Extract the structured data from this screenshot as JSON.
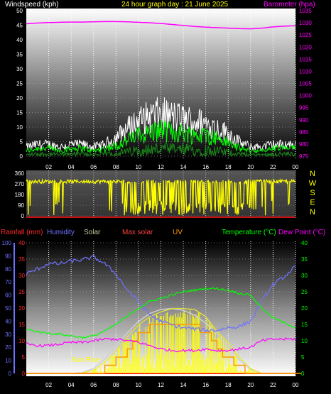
{
  "colors": {
    "white": "#ffffff",
    "yellow": "#ffff00",
    "magenta": "#ff00ff",
    "green": "#00ff00",
    "blue": "#6f72ff",
    "red": "#ff2a2a",
    "orange": "#ff7f00",
    "solar": "#c7c7a0",
    "dew": "#ff4fd8",
    "uv": "#ff9900"
  },
  "header": {
    "windspeed_label": "Windspeed (kph)",
    "title": "24 hour graph day : 21 June 2025",
    "barometer_label": "Barometer (hpa)"
  },
  "legend": {
    "rainfall": "Rainfall (mm)",
    "humidity": "Humidity",
    "solar": "Solar",
    "max_solar": "Max solar",
    "uv": "UV",
    "temperature": "Temperature (°C)",
    "dew_point": "Dew Point (°C)"
  },
  "annotations": {
    "sun_rise": "Sun Rise"
  },
  "compass": [
    "N",
    "W",
    "S",
    "E",
    "N"
  ],
  "x_ticks": [
    "02",
    "04",
    "06",
    "08",
    "10",
    "12",
    "14",
    "16",
    "18",
    "20",
    "22",
    "00"
  ],
  "chart_data": [
    {
      "type": "line",
      "name": "wind_and_barometer",
      "ylim_left": [
        0,
        50
      ],
      "ylim_right": [
        975,
        1035
      ],
      "yticks_left": [
        "0",
        "5",
        "10",
        "15",
        "20",
        "25",
        "30",
        "35",
        "40",
        "45",
        "50"
      ],
      "yticks_right": [
        "975",
        "980",
        "985",
        "990",
        "995",
        "1000",
        "1005",
        "1010",
        "1015",
        "1020",
        "1025",
        "1030",
        "1035"
      ],
      "x_hours": [
        0,
        1,
        2,
        3,
        4,
        5,
        6,
        7,
        8,
        9,
        10,
        11,
        12,
        13,
        14,
        15,
        16,
        17,
        18,
        19,
        20,
        21,
        22,
        23,
        24
      ],
      "series": [
        {
          "key": "gust",
          "values": [
            4,
            5,
            5,
            4,
            5,
            5,
            4,
            5,
            8,
            12,
            15,
            17,
            18,
            17,
            16,
            15,
            14,
            12,
            10,
            6,
            4,
            4,
            5,
            5,
            5
          ]
        },
        {
          "key": "wind_avg",
          "values": [
            2,
            3,
            3,
            2,
            3,
            3,
            2,
            3,
            4,
            6,
            8,
            9,
            10,
            9,
            9,
            8,
            8,
            7,
            5,
            3,
            2,
            2,
            3,
            3,
            3
          ]
        },
        {
          "key": "barometer",
          "values": [
            1029.6,
            1029.9,
            1030.1,
            1030.2,
            1030.3,
            1030.3,
            1030.4,
            1030.5,
            1030.5,
            1030.4,
            1030.2,
            1030.0,
            1029.7,
            1029.3,
            1028.9,
            1028.5,
            1028.2,
            1028.0,
            1027.8,
            1027.6,
            1027.5,
            1027.8,
            1028.3,
            1028.6,
            1028.8
          ]
        }
      ]
    },
    {
      "type": "scatter",
      "name": "wind_direction",
      "ylim": [
        0,
        360
      ],
      "yticks": [
        "0",
        "90",
        "180",
        "270",
        "360"
      ],
      "typical_direction": 290
    },
    {
      "type": "line",
      "name": "temperature_humidity_solar",
      "ylim_humidity": [
        0,
        100
      ],
      "ylim_rain": [
        0,
        40
      ],
      "ylim_temp": [
        0,
        40
      ],
      "yticks_humidity": [
        "0",
        "10",
        "20",
        "30",
        "40",
        "50",
        "60",
        "70",
        "80",
        "90",
        "100"
      ],
      "yticks_rain": [
        "0",
        "5",
        "10",
        "15",
        "20",
        "25",
        "30",
        "35",
        "40"
      ],
      "yticks_temp": [
        "0",
        "5",
        "10",
        "15",
        "20",
        "25",
        "30",
        "35",
        "40"
      ],
      "x_hours": [
        0,
        1,
        2,
        3,
        4,
        5,
        6,
        7,
        8,
        9,
        10,
        11,
        12,
        13,
        14,
        15,
        16,
        17,
        18,
        19,
        20,
        21,
        22,
        23,
        24
      ],
      "series": [
        {
          "key": "humidity",
          "values": [
            76,
            80,
            84,
            84,
            86,
            87,
            89,
            84,
            76,
            64,
            55,
            45,
            40,
            37,
            35,
            34,
            33,
            33,
            35,
            36,
            40,
            55,
            68,
            74,
            82
          ]
        },
        {
          "key": "temperature",
          "values": [
            13.5,
            12.8,
            12.3,
            12.0,
            11.5,
            11.0,
            11.5,
            13.0,
            15.0,
            17.5,
            20.0,
            22.0,
            23.0,
            24.0,
            25.0,
            25.5,
            26.0,
            26.0,
            25.5,
            24.5,
            24.0,
            20.0,
            17.0,
            15.5,
            14.0
          ]
        },
        {
          "key": "dew_point",
          "values": [
            9.0,
            8.5,
            8.5,
            9.0,
            9.5,
            9.5,
            10.0,
            10.5,
            10.5,
            10.0,
            9.5,
            8.5,
            7.5,
            7.0,
            7.0,
            7.0,
            7.5,
            7.0,
            7.0,
            7.5,
            8.0,
            10.0,
            10.5,
            10.5,
            10.5
          ]
        },
        {
          "key": "max_solar",
          "values": [
            0,
            0,
            0,
            0,
            0,
            10,
            60,
            180,
            340,
            500,
            640,
            740,
            790,
            800,
            780,
            720,
            620,
            490,
            330,
            170,
            50,
            0,
            0,
            0,
            0
          ]
        },
        {
          "key": "solar",
          "values": [
            0,
            0,
            0,
            0,
            0,
            5,
            40,
            140,
            280,
            450,
            600,
            700,
            760,
            800,
            800,
            790,
            700,
            520,
            380,
            200,
            60,
            0,
            0,
            0,
            0
          ]
        },
        {
          "key": "uv",
          "values": [
            0,
            0,
            0,
            0,
            0,
            0,
            0,
            0.5,
            1.5,
            3,
            4.5,
            5.5,
            6,
            6,
            6,
            5.5,
            4.5,
            3,
            1.5,
            0.5,
            0,
            0,
            0,
            0,
            0
          ]
        }
      ]
    }
  ]
}
